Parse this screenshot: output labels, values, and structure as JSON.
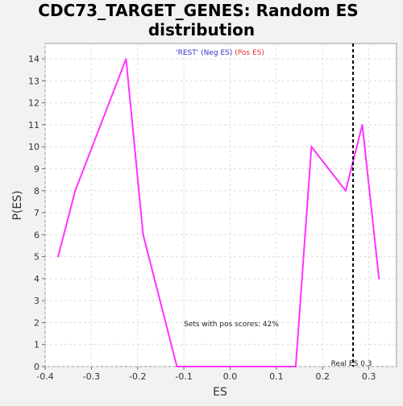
{
  "chart_data": {
    "type": "line",
    "title_line1": "CDC73_TARGET_GENES: Random ES",
    "title_line2": "distribution",
    "xlabel": "ES",
    "ylabel": "P(ES)",
    "xlim": [
      -0.4,
      0.36
    ],
    "ylim": [
      0,
      14.7
    ],
    "xticks": [
      -0.4,
      -0.3,
      -0.2,
      -0.1,
      0.0,
      0.1,
      0.2,
      0.3
    ],
    "xtick_labels": [
      "-0.4",
      "-0.3",
      "-0.2",
      "-0.1",
      "0.0",
      "0.1",
      "0.2",
      "0.3"
    ],
    "yticks": [
      0,
      1,
      2,
      3,
      4,
      5,
      6,
      7,
      8,
      9,
      10,
      11,
      12,
      13,
      14
    ],
    "ytick_labels": [
      "0",
      "1",
      "2",
      "3",
      "4",
      "5",
      "6",
      "7",
      "8",
      "9",
      "10",
      "11",
      "12",
      "13",
      "14"
    ],
    "grid": true,
    "series": [
      {
        "color": "#ff33ff",
        "x": [
          -0.372,
          -0.335,
          -0.225,
          -0.188,
          -0.115,
          0.142,
          0.176,
          0.25,
          0.286,
          0.322
        ],
        "y": [
          5,
          8,
          14,
          6,
          0,
          0,
          10,
          8,
          11,
          4
        ]
      }
    ],
    "real_es": {
      "x": 0.266,
      "label": "Real ES 0.3",
      "color": "#000000"
    },
    "legend": {
      "prefix": "'REST'",
      "neg": "(Neg ES)",
      "pos": "(Pos ES)",
      "prefix_color": "#3333cc",
      "neg_color": "#3333cc",
      "pos_color": "#e03030"
    },
    "annotation": "Sets with pos scores: 42%"
  }
}
